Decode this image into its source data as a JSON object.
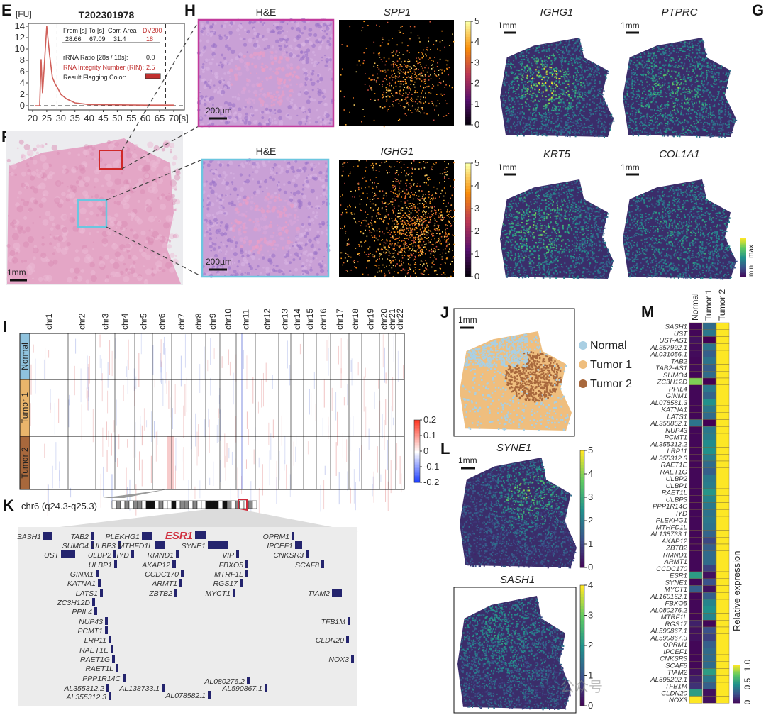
{
  "panels": {
    "E": {
      "label": "E",
      "title": "T202301978",
      "y_unit": "[FU]",
      "x_unit": "[s]",
      "table": {
        "headers": [
          "From [s]",
          "To [s]",
          "Corr. Area",
          "DV200"
        ],
        "values": [
          "28.66",
          "67.09",
          "31.4",
          "18"
        ],
        "rrna_label": "rRNA Ratio [28s / 18s]:",
        "rrna_value": "0.0",
        "rin_label": "RNA Integrity Number (RIN):",
        "rin_value": "2.5",
        "flag_label": "Result Flagging Color:",
        "flag_color": "#c0302f"
      }
    },
    "F": {
      "label": "F",
      "scale_bar": "1mm"
    },
    "H": {
      "label": "H",
      "top": {
        "he_title": "H&E",
        "gene_title": "SPP1",
        "scale_bar": "200µm",
        "colorbar_ticks": [
          "5",
          "4",
          "3",
          "2",
          "1",
          "0"
        ],
        "border_color": "#c23c9c"
      },
      "bottom": {
        "he_title": "H&E",
        "gene_title": "IGHG1",
        "scale_bar": "200µm",
        "colorbar_ticks": [
          "5",
          "4",
          "3",
          "2",
          "1",
          "0"
        ],
        "border_color": "#6cc6e0"
      }
    },
    "G": {
      "label": "G",
      "maps": [
        {
          "gene": "IGHG1",
          "scale_bar": "1mm"
        },
        {
          "gene": "PTPRC",
          "scale_bar": "1mm"
        },
        {
          "gene": "KRT5",
          "scale_bar": "1mm"
        },
        {
          "gene": "COL1A1",
          "scale_bar": "1mm"
        }
      ],
      "colorbar": {
        "max": "max",
        "min": "min"
      }
    },
    "I": {
      "label": "I",
      "chromosomes": [
        "chr1",
        "chr2",
        "chr3",
        "chr4",
        "chr5",
        "chr6",
        "chr7",
        "chr8",
        "chr9",
        "chr10",
        "chr11",
        "chr12",
        "chr13",
        "chr14",
        "chr15",
        "chr16",
        "chr17",
        "chr18",
        "chr19",
        "chr20",
        "chr21",
        "chr22"
      ],
      "groups": [
        {
          "name": "Normal",
          "color": "#8fc3de"
        },
        {
          "name": "Tumor 1",
          "color": "#e9b56b"
        },
        {
          "name": "Tumor 2",
          "color": "#a8683c"
        }
      ],
      "colorbar_ticks": [
        "0.2",
        "0.1",
        "0",
        "-0.1",
        "-0.2"
      ]
    },
    "J": {
      "label": "J",
      "scale_bar": "1mm",
      "legend": [
        {
          "name": "Normal",
          "color": "#a9cfe3"
        },
        {
          "name": "Tumor 1",
          "color": "#efbe7e"
        },
        {
          "name": "Tumor 2",
          "color": "#a8683c"
        }
      ]
    },
    "K": {
      "label": "K",
      "region": "chr6 (q24.3-q25.3)",
      "highlight_gene": "ESR1",
      "genes": [
        "SASH1",
        "TAB2",
        "SUMO4",
        "UST",
        "ULBP3",
        "ULBP2",
        "ULBP1",
        "PLEKHG1",
        "MTHFD1L",
        "IYD",
        "RMND1",
        "AKAP12",
        "CCDC170",
        "ARMT1",
        "ZBTB2",
        "ESR1",
        "SYNE1",
        "VIP",
        "FBXO5",
        "MTRF1L",
        "RGS17",
        "MYCT1",
        "OPRM1",
        "IPCEF1",
        "CNKSR3",
        "SCAF8",
        "TIAM2",
        "TFB1M",
        "CLDN20",
        "NOX3",
        "GINM1",
        "KATNA1",
        "LATS1",
        "ZC3H12D",
        "PPIL4",
        "NUP43",
        "PCMT1",
        "LRP11",
        "RAET1E",
        "RAET1G",
        "RAET1L",
        "PPP1R14C",
        "AL355312.2",
        "AL355312.3",
        "AL138733.1",
        "AL078582.1",
        "AL080276.2",
        "AL590867.1"
      ]
    },
    "L": {
      "label": "L",
      "maps": [
        {
          "gene": "SYNE1",
          "scale_bar": "1mm",
          "colorbar_ticks": [
            "5",
            "4",
            "3",
            "2",
            "1",
            "0"
          ]
        },
        {
          "gene": "SASH1",
          "colorbar_ticks": [
            "4",
            "3",
            "2",
            "1",
            "0"
          ]
        }
      ]
    },
    "M": {
      "label": "M",
      "colorbar_label": "Relative expression",
      "colorbar_ticks": [
        "0",
        "0.5",
        "1.0"
      ]
    }
  },
  "chart_data": [
    {
      "type": "line",
      "title": "T202301978",
      "xlabel": "[s]",
      "ylabel": "[FU]",
      "xlim": [
        20,
        72
      ],
      "ylim": [
        -0.5,
        14.5
      ],
      "xticks": [
        20,
        25,
        30,
        35,
        40,
        45,
        50,
        55,
        60,
        65,
        70
      ],
      "yticks": [
        0,
        2,
        4,
        6,
        8,
        10,
        12,
        14
      ],
      "x": [
        21,
        22.5,
        23,
        23.5,
        24,
        25,
        26,
        27,
        28,
        29,
        30,
        32,
        35,
        40,
        50,
        60,
        70
      ],
      "y": [
        0,
        0,
        8.2,
        2.2,
        6,
        14,
        9,
        5,
        3.8,
        3,
        2,
        1.2,
        0.5,
        0.2,
        0.15,
        0.1,
        0.1
      ],
      "vlines": [
        28.66,
        67.09
      ],
      "color": "#d0605a"
    },
    {
      "type": "heatmap",
      "columns": [
        "Normal",
        "Tumor 1",
        "Tumor 2"
      ],
      "rows": [
        "SASH1",
        "UST",
        "UST-AS1",
        "AL357992.1",
        "AL031056.1",
        "TAB2",
        "TAB2-AS1",
        "SUMO4",
        "ZC3H12D",
        "PPIL4",
        "GINM1",
        "AL078581.3",
        "KATNA1",
        "LATS1",
        "AL358852.1",
        "NUP43",
        "PCMT1",
        "AL355312.2",
        "LRP11",
        "AL355312.3",
        "RAET1E",
        "RAET1G",
        "ULBP2",
        "ULBP1",
        "RAET1L",
        "ULBP3",
        "PPP1R14C",
        "IYD",
        "PLEKHG1",
        "MTHFD1L",
        "AL138733.1",
        "AKAP12",
        "ZBTB2",
        "RMND1",
        "ARMT1",
        "CCDC170",
        "ESR1",
        "SYNE1",
        "MYCT1",
        "AL160162.1",
        "FBXO5",
        "AL080276.2",
        "MTRF1L",
        "RGS17",
        "AL590867.1",
        "AL590867.3",
        "OPRM1",
        "IPCEF1",
        "CNKSR3",
        "SCAF8",
        "TIAM2",
        "AL596202.1",
        "TFB1M",
        "CLDN20",
        "NOX3"
      ],
      "values": [
        [
          0.02,
          0.35,
          1
        ],
        [
          0.02,
          0.4,
          1
        ],
        [
          0.05,
          0.0,
          1
        ],
        [
          0.03,
          0.38,
          1
        ],
        [
          0.03,
          0.3,
          1
        ],
        [
          0.02,
          0.38,
          1
        ],
        [
          0.03,
          0.3,
          1
        ],
        [
          0.02,
          0.35,
          1
        ],
        [
          0.8,
          0.0,
          1
        ],
        [
          0.02,
          0.4,
          1
        ],
        [
          0.02,
          0.32,
          1
        ],
        [
          0.02,
          0.5,
          1
        ],
        [
          0.02,
          0.4,
          1
        ],
        [
          0.02,
          0.35,
          1
        ],
        [
          0.38,
          0.0,
          1
        ],
        [
          0.02,
          0.4,
          1
        ],
        [
          0.02,
          0.42,
          1
        ],
        [
          0.02,
          0.48,
          1
        ],
        [
          0.02,
          0.5,
          1
        ],
        [
          0.02,
          0.42,
          1
        ],
        [
          0.02,
          0.35,
          1
        ],
        [
          0.02,
          0.3,
          1
        ],
        [
          0.02,
          0.4,
          1
        ],
        [
          0.02,
          0.42,
          1
        ],
        [
          0.02,
          0.52,
          1
        ],
        [
          0.02,
          0.45,
          1
        ],
        [
          0.02,
          0.4,
          1
        ],
        [
          0.02,
          0.38,
          1
        ],
        [
          0.02,
          0.4,
          1
        ],
        [
          0.02,
          0.38,
          1
        ],
        [
          0.02,
          0.32,
          1
        ],
        [
          0.02,
          0.22,
          1
        ],
        [
          0.02,
          0.3,
          1
        ],
        [
          0.02,
          0.35,
          1
        ],
        [
          0.02,
          0.35,
          1
        ],
        [
          0.02,
          0.2,
          1
        ],
        [
          0.55,
          0.05,
          1
        ],
        [
          0.02,
          0.25,
          1
        ],
        [
          0.3,
          0.05,
          1
        ],
        [
          0.02,
          0.3,
          1
        ],
        [
          0.02,
          0.45,
          1
        ],
        [
          0.02,
          0.5,
          1
        ],
        [
          0.02,
          0.45,
          1
        ],
        [
          0.1,
          0.02,
          1
        ],
        [
          0.05,
          0.25,
          1
        ],
        [
          0.05,
          0.2,
          1
        ],
        [
          0.02,
          0.3,
          1
        ],
        [
          0.02,
          0.35,
          1
        ],
        [
          0.02,
          0.35,
          1
        ],
        [
          0.02,
          0.35,
          1
        ],
        [
          0.05,
          0.55,
          1
        ],
        [
          0.1,
          0.4,
          1
        ],
        [
          0.15,
          0.3,
          1
        ],
        [
          0.55,
          0.05,
          1
        ],
        [
          1.0,
          0.05,
          1
        ]
      ],
      "colorbar": {
        "label": "Relative expression",
        "range": [
          0,
          1
        ],
        "colormap": "viridis"
      }
    }
  ],
  "watermark": "公众号"
}
